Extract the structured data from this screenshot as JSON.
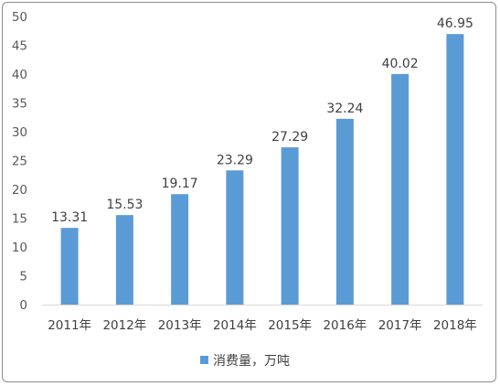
{
  "chart_data": {
    "type": "bar",
    "title": "",
    "xlabel": "",
    "ylabel": "",
    "categories": [
      "2011年",
      "2012年",
      "2013年",
      "2014年",
      "2015年",
      "2016年",
      "2017年",
      "2018年"
    ],
    "series": [
      {
        "name": "消费量，万吨",
        "values": [
          13.31,
          15.53,
          19.17,
          23.29,
          27.29,
          32.24,
          40.02,
          46.95
        ],
        "labels": [
          "13.31",
          "15.53",
          "19.17",
          "23.29",
          "27.29",
          "32.24",
          "40.02",
          "46.95"
        ]
      }
    ],
    "ylim": [
      0,
      50
    ],
    "yticks": [
      0,
      5,
      10,
      15,
      20,
      25,
      30,
      35,
      40,
      45,
      50
    ],
    "grid": false,
    "legend": "bottom",
    "colors": {
      "bar": "#5b9bd5",
      "axis": "#d9d9d9"
    }
  }
}
